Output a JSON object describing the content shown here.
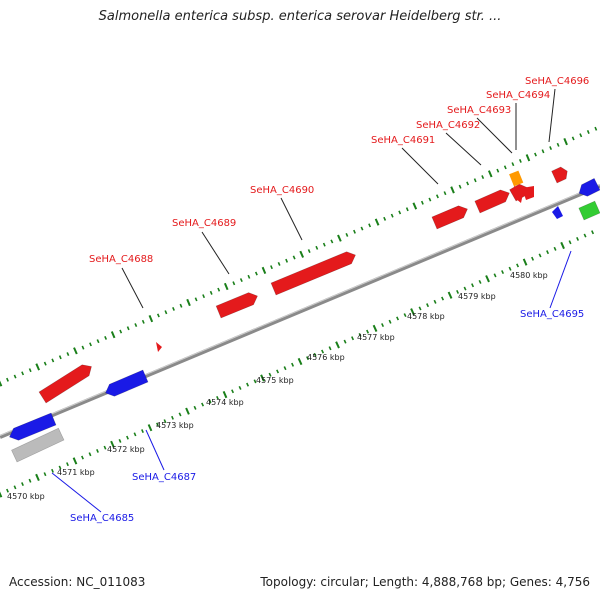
{
  "title": "Salmonella enterica subsp. enterica serovar Heidelberg str. ...",
  "footer": {
    "accession": "Accession: NC_011083",
    "topology": "Topology: circular; Length: 4,888,768 bp; Genes: 4,756"
  },
  "colors": {
    "forward": "#e41a1c",
    "reverse": "#1a1ae6",
    "other": "#bbbbbb",
    "orange": "#ff9900",
    "green": "#33cc33",
    "ticks": "#1a7f1a",
    "backbone": "#888888"
  },
  "tick_labels": [
    "4570 kbp",
    "4571 kbp",
    "4572 kbp",
    "4573 kbp",
    "4574 kbp",
    "4575 kbp",
    "4576 kbp",
    "4577 kbp",
    "4578 kbp",
    "4579 kbp",
    "4580 kbp"
  ],
  "gene_labels_forward": [
    "SeHA_C4688",
    "SeHA_C4689",
    "SeHA_C4690",
    "SeHA_C4691",
    "SeHA_C4692",
    "SeHA_C4693",
    "SeHA_C4694",
    "SeHA_C4696"
  ],
  "gene_labels_reverse": [
    "SeHA_C4685",
    "SeHA_C4687",
    "SeHA_C4695"
  ]
}
